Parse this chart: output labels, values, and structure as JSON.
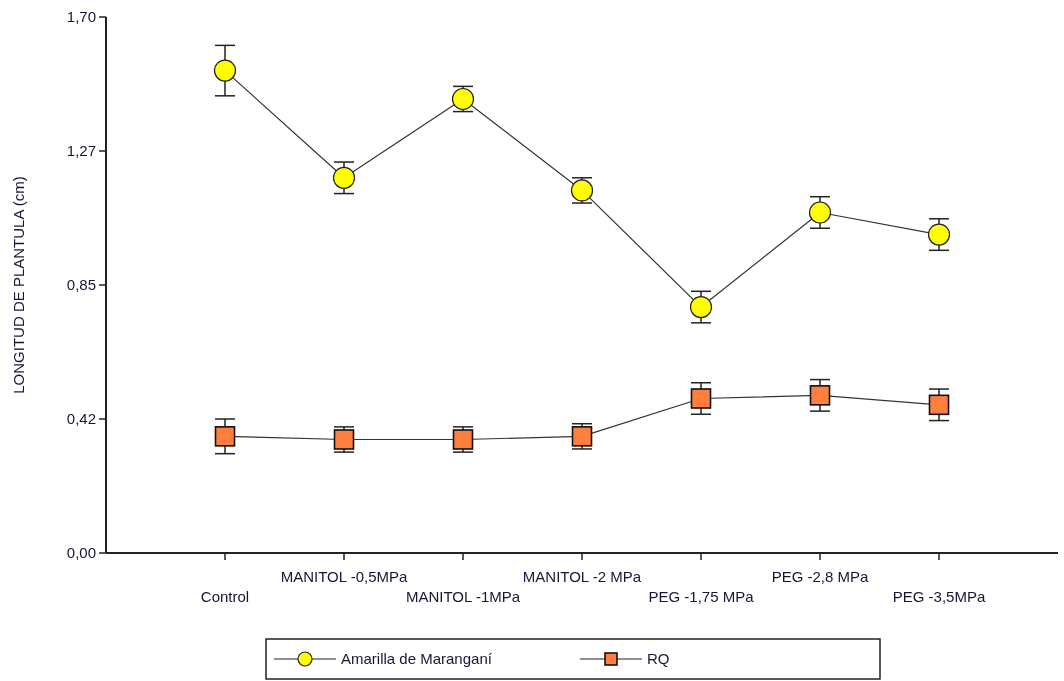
{
  "chart_data": {
    "type": "line",
    "ylabel": "LONGITUD DE PLANTULA (cm)",
    "categories": [
      "Control",
      "MANITOL -0,5MPa",
      "MANITOL -1MPa",
      "MANITOL -2 MPa",
      "PEG -1,75 MPa",
      "PEG -2,8 MPa",
      "PEG -3,5MPa"
    ],
    "series": [
      {
        "name": "Amarilla de Maranganí",
        "color": "#ffff00",
        "marker": "circle",
        "values": [
          1.53,
          1.19,
          1.44,
          1.15,
          0.78,
          1.08,
          1.01
        ],
        "errors": [
          0.08,
          0.05,
          0.04,
          0.04,
          0.05,
          0.05,
          0.05
        ]
      },
      {
        "name": "RQ",
        "color": "#ff7f3f",
        "marker": "square",
        "values": [
          0.37,
          0.36,
          0.36,
          0.37,
          0.49,
          0.5,
          0.47
        ],
        "errors": [
          0.055,
          0.04,
          0.04,
          0.04,
          0.05,
          0.05,
          0.05
        ]
      }
    ],
    "ylim": [
      0,
      1.7
    ],
    "yticks": [
      {
        "value": 0,
        "label": "0,00"
      },
      {
        "value": 0.425,
        "label": "0,42"
      },
      {
        "value": 0.85,
        "label": "0,85"
      },
      {
        "value": 1.275,
        "label": "1,27"
      },
      {
        "value": 1.7,
        "label": "1,70"
      }
    ],
    "line_style": "solid",
    "legend": "bottom"
  }
}
